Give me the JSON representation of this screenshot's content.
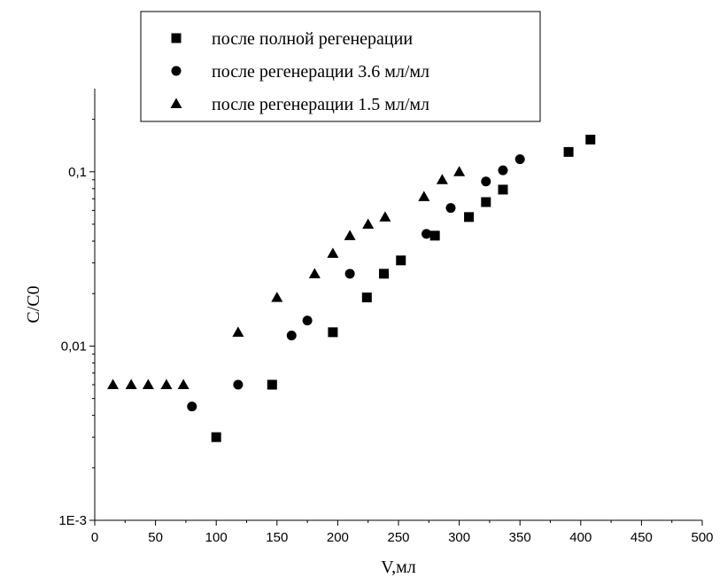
{
  "chart_data": {
    "type": "scatter",
    "title": "",
    "xlabel": "V,мл",
    "ylabel": "C/C0",
    "xlim": [
      0,
      500
    ],
    "ylim": [
      0.001,
      0.3
    ],
    "yscale": "log",
    "grid": false,
    "legend_position": "top-left",
    "x_ticks": [
      0,
      50,
      100,
      150,
      200,
      250,
      300,
      350,
      400,
      450,
      500
    ],
    "x_tick_labels": [
      "0",
      "50",
      "100",
      "150",
      "200",
      "250",
      "300",
      "350",
      "400",
      "450",
      "500"
    ],
    "y_ticks": [
      0.001,
      0.01,
      0.1
    ],
    "y_tick_labels": [
      "1E-3",
      "0,01",
      "0,1"
    ],
    "series": [
      {
        "name": "после полной регенерации",
        "marker": "square",
        "points": [
          [
            100,
            0.003
          ],
          [
            146,
            0.006
          ],
          [
            196,
            0.012
          ],
          [
            224,
            0.019
          ],
          [
            238,
            0.026
          ],
          [
            252,
            0.031
          ],
          [
            280,
            0.043
          ],
          [
            308,
            0.055
          ],
          [
            322,
            0.067
          ],
          [
            336,
            0.079
          ],
          [
            390,
            0.13
          ],
          [
            408,
            0.153
          ]
        ]
      },
      {
        "name": "после регенерации 3.6 мл/мл",
        "marker": "circle",
        "points": [
          [
            80,
            0.0045
          ],
          [
            118,
            0.006
          ],
          [
            162,
            0.0115
          ],
          [
            175,
            0.014
          ],
          [
            210,
            0.026
          ],
          [
            273,
            0.044
          ],
          [
            293,
            0.062
          ],
          [
            322,
            0.088
          ],
          [
            336,
            0.102
          ],
          [
            350,
            0.118
          ]
        ]
      },
      {
        "name": "после регенерации 1.5 мл/мл",
        "marker": "triangle",
        "points": [
          [
            15,
            0.006
          ],
          [
            30,
            0.006
          ],
          [
            44,
            0.006
          ],
          [
            59,
            0.006
          ],
          [
            73,
            0.006
          ],
          [
            118,
            0.012
          ],
          [
            150,
            0.019
          ],
          [
            181,
            0.026
          ],
          [
            196,
            0.034
          ],
          [
            210,
            0.043
          ],
          [
            225,
            0.05
          ],
          [
            239,
            0.055
          ],
          [
            271,
            0.072
          ],
          [
            286,
            0.09
          ],
          [
            300,
            0.1
          ]
        ]
      }
    ],
    "colors": {
      "marker": "#000000",
      "axis": "#000000",
      "background": "#ffffff"
    }
  }
}
